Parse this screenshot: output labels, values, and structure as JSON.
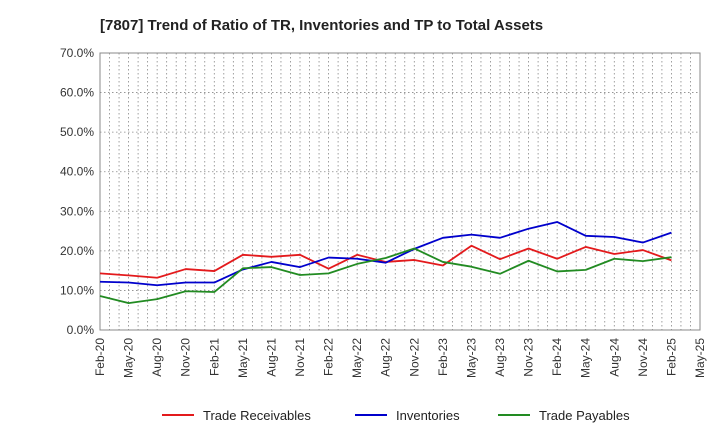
{
  "chart_data": {
    "type": "line",
    "title": "[7807]  Trend of Ratio of TR, Inventories and TP to Total Assets",
    "xlabel": "",
    "ylabel": "",
    "ylim": [
      0,
      70
    ],
    "y_ticks": [
      0,
      10,
      20,
      30,
      40,
      50,
      60,
      70
    ],
    "y_tick_labels": [
      "0.0%",
      "10.0%",
      "20.0%",
      "30.0%",
      "40.0%",
      "50.0%",
      "60.0%",
      "70.0%"
    ],
    "x_tick_labels": [
      "Feb-20",
      "May-20",
      "Aug-20",
      "Nov-20",
      "Feb-21",
      "May-21",
      "Aug-21",
      "Nov-21",
      "Feb-22",
      "May-22",
      "Aug-22",
      "Nov-22",
      "Feb-23",
      "May-23",
      "Aug-23",
      "Nov-23",
      "Feb-24",
      "May-24",
      "Aug-24",
      "Nov-24",
      "Feb-25",
      "May-25"
    ],
    "categories": [
      "Feb-20",
      "May-20",
      "Aug-20",
      "Nov-20",
      "Feb-21",
      "May-21",
      "Aug-21",
      "Nov-21",
      "Feb-22",
      "May-22",
      "Aug-22",
      "Nov-22",
      "Feb-23",
      "May-23",
      "Aug-23",
      "Nov-23",
      "Feb-24",
      "May-24",
      "Aug-24",
      "Nov-24",
      "Feb-25"
    ],
    "grid": true,
    "legend_position": "bottom",
    "series": [
      {
        "name": "Trade Receivables",
        "color": "#e31a1c",
        "values": [
          14.3,
          13.8,
          13.2,
          15.4,
          14.9,
          19.0,
          18.5,
          19.0,
          15.5,
          19.0,
          17.2,
          17.7,
          16.3,
          21.3,
          17.9,
          20.6,
          18.0,
          21.0,
          19.2,
          20.2,
          17.6
        ]
      },
      {
        "name": "Inventories",
        "color": "#0000cc",
        "values": [
          12.2,
          12.0,
          11.3,
          12.0,
          12.0,
          15.3,
          17.2,
          15.9,
          18.3,
          18.0,
          17.0,
          20.5,
          23.3,
          24.1,
          23.3,
          25.6,
          27.3,
          23.8,
          23.5,
          22.1,
          24.6
        ]
      },
      {
        "name": "Trade Payables",
        "color": "#228b22",
        "values": [
          8.6,
          6.8,
          7.8,
          9.8,
          9.6,
          15.6,
          15.9,
          13.9,
          14.3,
          16.7,
          18.2,
          20.6,
          17.2,
          16.0,
          14.2,
          17.5,
          14.8,
          15.2,
          18.0,
          17.4,
          18.4
        ]
      }
    ]
  }
}
